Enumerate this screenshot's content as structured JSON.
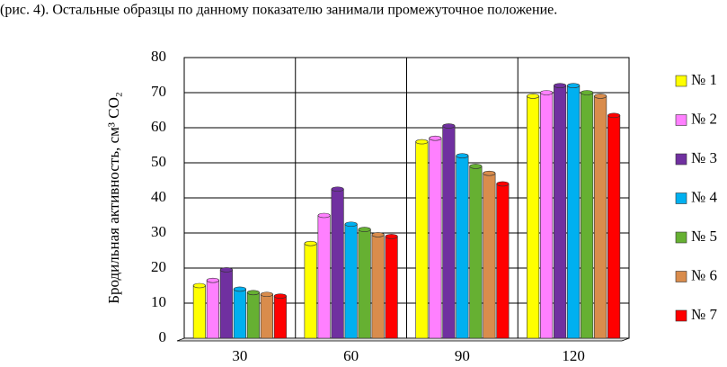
{
  "paragraph": "(рис. 4). Остальные образцы по данному показателю занимали промежуточное положение.",
  "chart_data": {
    "type": "bar",
    "y_label": "Бродильная активность, см³ CO₂",
    "categories": [
      "30",
      "60",
      "90",
      "120"
    ],
    "series": [
      {
        "name": "№ 1",
        "color": "#ffff00",
        "values": [
          15,
          27,
          56,
          69
        ]
      },
      {
        "name": "№ 2",
        "color": "#ff80ff",
        "values": [
          16.5,
          35,
          57,
          70
        ]
      },
      {
        "name": "№ 3",
        "color": "#7030a0",
        "values": [
          19.5,
          42.5,
          60.5,
          72
        ]
      },
      {
        "name": "№ 4",
        "color": "#00b0f0",
        "values": [
          14,
          32.5,
          52,
          72
        ]
      },
      {
        "name": "№ 5",
        "color": "#66b032",
        "values": [
          13,
          31,
          49,
          70
        ]
      },
      {
        "name": "№ 6",
        "color": "#d98c4c",
        "values": [
          12.5,
          29.5,
          47,
          69
        ]
      },
      {
        "name": "№ 7",
        "color": "#ff0000",
        "values": [
          12,
          29,
          44,
          63.5
        ]
      }
    ],
    "ylim": [
      0,
      80
    ],
    "yticks": [
      0,
      10,
      20,
      30,
      40,
      50,
      60,
      70,
      80
    ],
    "grid": true,
    "legend": "right"
  }
}
